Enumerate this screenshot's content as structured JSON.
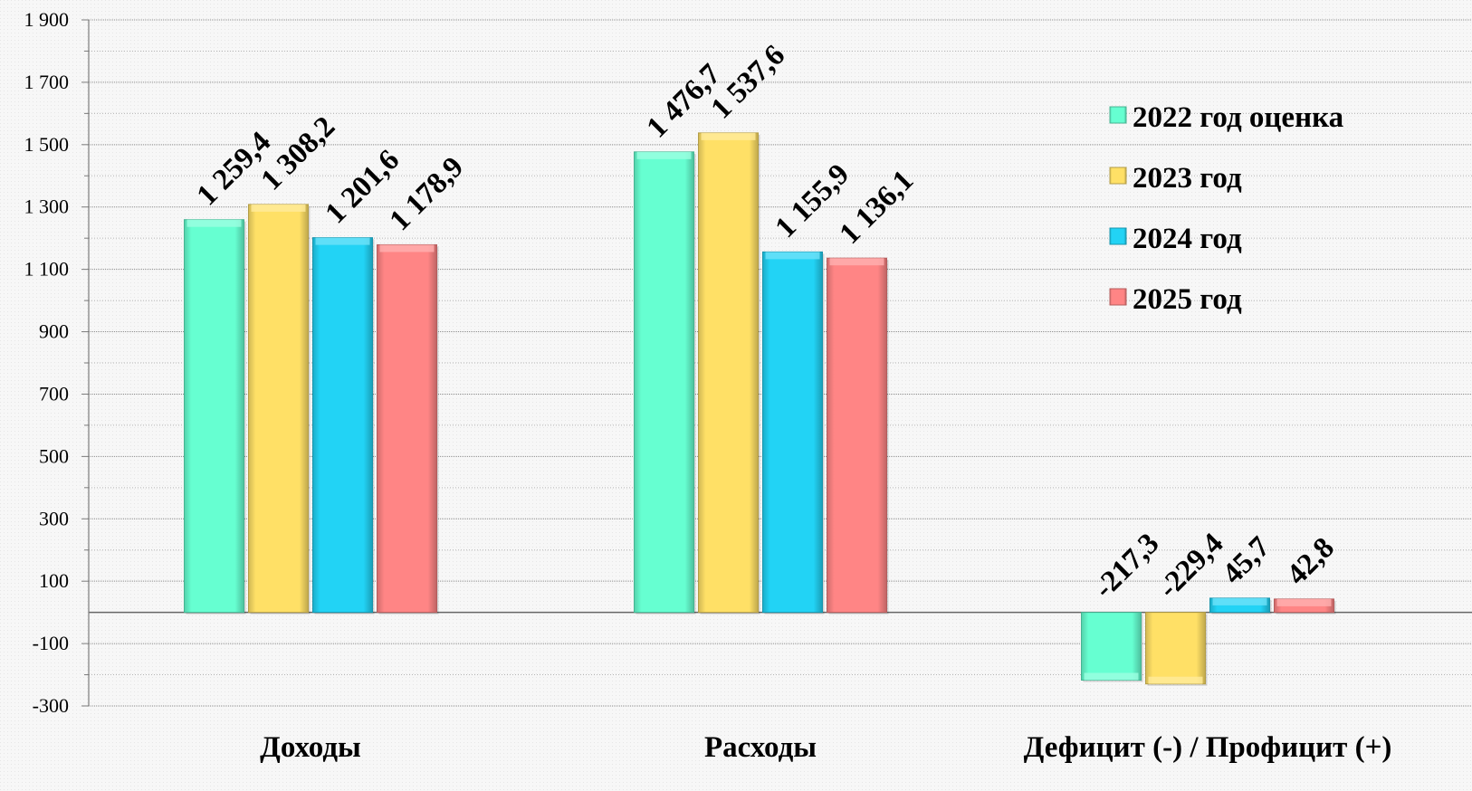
{
  "chart_data": {
    "type": "bar",
    "categories": [
      "Доходы",
      "Расходы",
      "Дефицит (-) / Профицит (+)"
    ],
    "series": [
      {
        "name": "2022 год оценка",
        "color": "#66ffd1",
        "values": [
          1259.4,
          1476.7,
          -217.3
        ],
        "labels": [
          "1 259,4",
          "1 476,7",
          "-217,3"
        ]
      },
      {
        "name": "2023 год",
        "color": "#ffe066",
        "values": [
          1308.2,
          1537.6,
          -229.4
        ],
        "labels": [
          "1 308,2",
          "1 537,6",
          "-229,4"
        ]
      },
      {
        "name": "2024 год",
        "color": "#22d3f5",
        "values": [
          1201.6,
          1155.9,
          45.7
        ],
        "labels": [
          "1 201,6",
          "1 155,9",
          "45,7"
        ]
      },
      {
        "name": "2025 год",
        "color": "#ff8585",
        "values": [
          1178.9,
          1136.1,
          42.8
        ],
        "labels": [
          "1 178,9",
          "1 136,1",
          "42,8"
        ]
      }
    ],
    "ylim": [
      -300,
      1900
    ],
    "yticks": [
      1900,
      1700,
      1500,
      1300,
      1100,
      900,
      700,
      500,
      300,
      100,
      -100,
      -300
    ],
    "ytick_labels": [
      "1 900",
      "1 700",
      "1 500",
      "1 300",
      "1 100",
      "900",
      "700",
      "500",
      "300",
      "100",
      "-100",
      "-300"
    ],
    "grid": true,
    "legend_position": "right",
    "title": "",
    "xlabel": "",
    "ylabel": ""
  }
}
